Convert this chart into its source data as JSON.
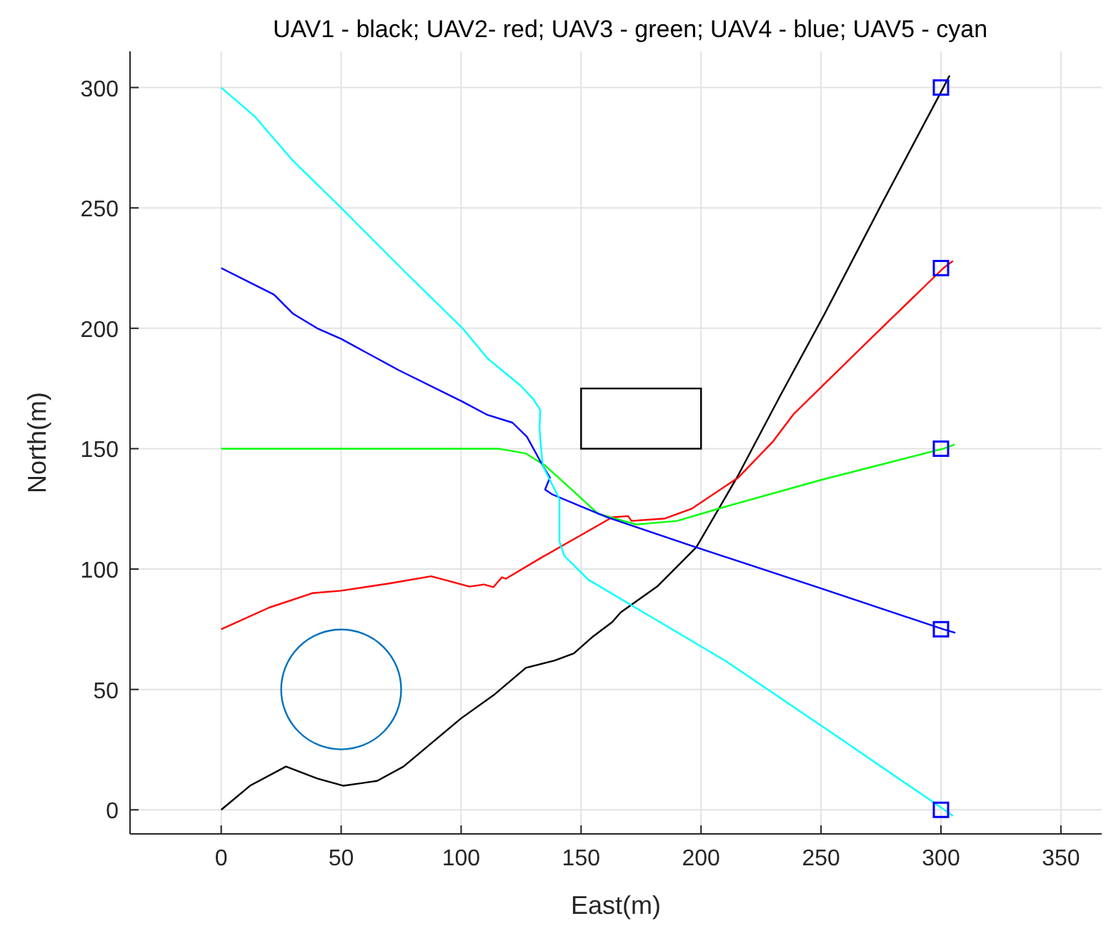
{
  "chart_data": {
    "type": "line",
    "title": "UAV1 - black; UAV2- red; UAV3 - green; UAV4 - blue; UAV5 - cyan",
    "xlabel": "East(m)",
    "ylabel": "North(m)",
    "xlim": [
      -38,
      367
    ],
    "ylim": [
      -10,
      315
    ],
    "xticks": [
      0,
      50,
      100,
      150,
      200,
      250,
      300,
      350
    ],
    "yticks": [
      0,
      50,
      100,
      150,
      200,
      250,
      300
    ],
    "grid": true,
    "series": [
      {
        "color": "#000000",
        "x": [
          0,
          12,
          27,
          40,
          51,
          65,
          76,
          88,
          100,
          114,
          127,
          139,
          147,
          155,
          163,
          166.5,
          182,
          198,
          215.5,
          233,
          251.5,
          276,
          301,
          303.6
        ],
        "values": [
          0,
          10,
          18,
          13,
          10,
          12,
          18,
          28,
          38,
          48,
          59,
          62,
          65,
          72,
          78,
          82,
          93,
          109,
          139,
          172,
          206,
          253,
          300,
          305
        ]
      },
      {
        "color": "#ff0000",
        "x": [
          0,
          20,
          38,
          50,
          70,
          87.5,
          95,
          103.5,
          109.5,
          113.5,
          117,
          118.7,
          133,
          148,
          163,
          169.6,
          171,
          185,
          196,
          215.5,
          230,
          238.7,
          270,
          301,
          305
        ],
        "values": [
          75,
          84,
          90,
          91,
          94,
          97,
          95,
          92.7,
          93.6,
          92.5,
          96.6,
          96,
          104.5,
          113,
          121.5,
          122,
          120,
          121,
          125,
          138,
          153,
          164.5,
          195,
          225,
          228
        ]
      },
      {
        "color": "#00ff00",
        "x": [
          0,
          50,
          100,
          115.5,
          127,
          135,
          145,
          157,
          173,
          190,
          207,
          250,
          301,
          305.7
        ],
        "values": [
          150,
          150,
          150,
          150,
          148,
          143,
          134,
          123,
          118.5,
          120,
          125,
          137,
          150,
          151.7
        ]
      },
      {
        "color": "#0000ff",
        "x": [
          0,
          14,
          22,
          30,
          40,
          50,
          74,
          100.6,
          111,
          121.4,
          127.4,
          134,
          137,
          135,
          138,
          150,
          161,
          198,
          250,
          301,
          306
        ],
        "values": [
          225,
          218,
          214,
          206,
          200,
          195.6,
          182.6,
          169.5,
          164,
          160.8,
          155,
          143,
          138,
          133,
          131,
          126,
          121.5,
          109,
          92,
          75,
          73.5
        ]
      },
      {
        "color": "#00ffff",
        "x": [
          0,
          14,
          18.3,
          30,
          50,
          75,
          100.6,
          111,
          125,
          130,
          133,
          132.7,
          133,
          134,
          141,
          141,
          143,
          153,
          173,
          210,
          251.5,
          301,
          305
        ],
        "values": [
          300,
          288,
          283,
          269.5,
          250,
          225,
          200,
          187.5,
          176,
          170.7,
          166,
          159,
          154,
          143,
          129,
          111.4,
          105.5,
          95.6,
          83.8,
          62,
          34,
          0.3,
          -2.5
        ]
      },
      {
        "type": "scatter",
        "color": "#0000ff",
        "marker": "square",
        "x": [
          300,
          300,
          300,
          300,
          300
        ],
        "values": [
          0,
          75,
          150,
          225,
          300
        ]
      }
    ]
  }
}
